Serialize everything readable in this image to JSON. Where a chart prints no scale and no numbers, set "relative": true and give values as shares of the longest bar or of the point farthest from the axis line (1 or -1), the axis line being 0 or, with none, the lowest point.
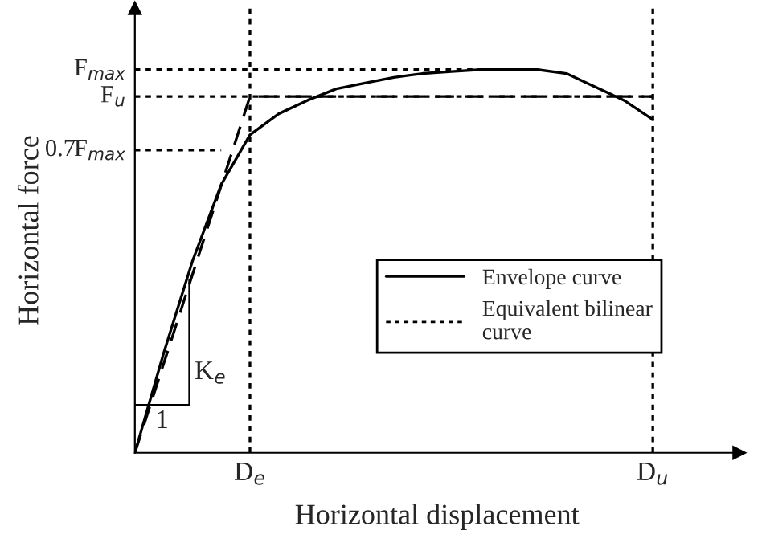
{
  "chart_data": {
    "type": "line",
    "relative": true,
    "xlabel": "Horizontal displacement",
    "ylabel": "Horizontal force",
    "categories": [
      null,
      null,
      null,
      null,
      "D$_{e}$",
      null,
      null,
      null,
      null,
      null,
      null,
      null,
      null,
      null,
      null,
      null,
      null,
      null,
      "D$_{u}$",
      null,
      null
    ],
    "series": [
      {
        "name": "Envelope curve",
        "color": "#000000",
        "line_style": "solid",
        "values": [
          0,
          0.26,
          0.5,
          0.7,
          0.83,
          0.885,
          0.92,
          0.95,
          0.965,
          0.98,
          0.99,
          0.995,
          1.0,
          1.0,
          1.0,
          0.99,
          0.955,
          0.92,
          0.87,
          null,
          null
        ]
      },
      {
        "name": "Equivalent bilinear\ncurve",
        "color": "#000000",
        "line_style": "dashed",
        "values": [
          0,
          0.2325,
          0.465,
          0.6975,
          0.93,
          0.93,
          0.93,
          0.93,
          0.93,
          0.93,
          0.93,
          0.93,
          0.93,
          0.93,
          0.93,
          0.93,
          0.93,
          0.93,
          0.93,
          null,
          null
        ]
      },
      {
        "name": "F$_{max}$",
        "color": "#000000",
        "line_style": "dotted",
        "values": [
          1,
          1,
          1,
          1,
          1,
          1,
          1,
          1,
          1,
          1,
          1,
          1,
          1,
          null,
          null,
          null,
          null,
          null,
          null,
          null,
          null
        ]
      },
      {
        "name": "F$_{u}$",
        "color": "#000000",
        "line_style": "dotted",
        "values": [
          0.93,
          0.93,
          0.93,
          0.93,
          0.93,
          0.93,
          0.93,
          0.93,
          0.93,
          0.93,
          0.93,
          0.93,
          0.93,
          0.93,
          0.93,
          0.93,
          0.93,
          0.93,
          0.93,
          null,
          null
        ]
      },
      {
        "name": "0.7F$_{max}$",
        "color": "#000000",
        "line_style": "dotted",
        "values": [
          0.79,
          0.79,
          0.79,
          0.79,
          null,
          null,
          null,
          null,
          null,
          null,
          null,
          null,
          null,
          null,
          null,
          null,
          null,
          null,
          null,
          null,
          null
        ]
      }
    ],
    "ref_lines": [
      {
        "axis": "x",
        "value": "D$_{e}$",
        "line_style": "dotted",
        "color": "#000000"
      },
      {
        "axis": "x",
        "value": "D$_{u}$",
        "line_style": "dotted",
        "color": "#000000"
      }
    ],
    "annotations": [
      "K$_{e}$",
      "1"
    ],
    "legend": "bottom right",
    "grid": false
  }
}
